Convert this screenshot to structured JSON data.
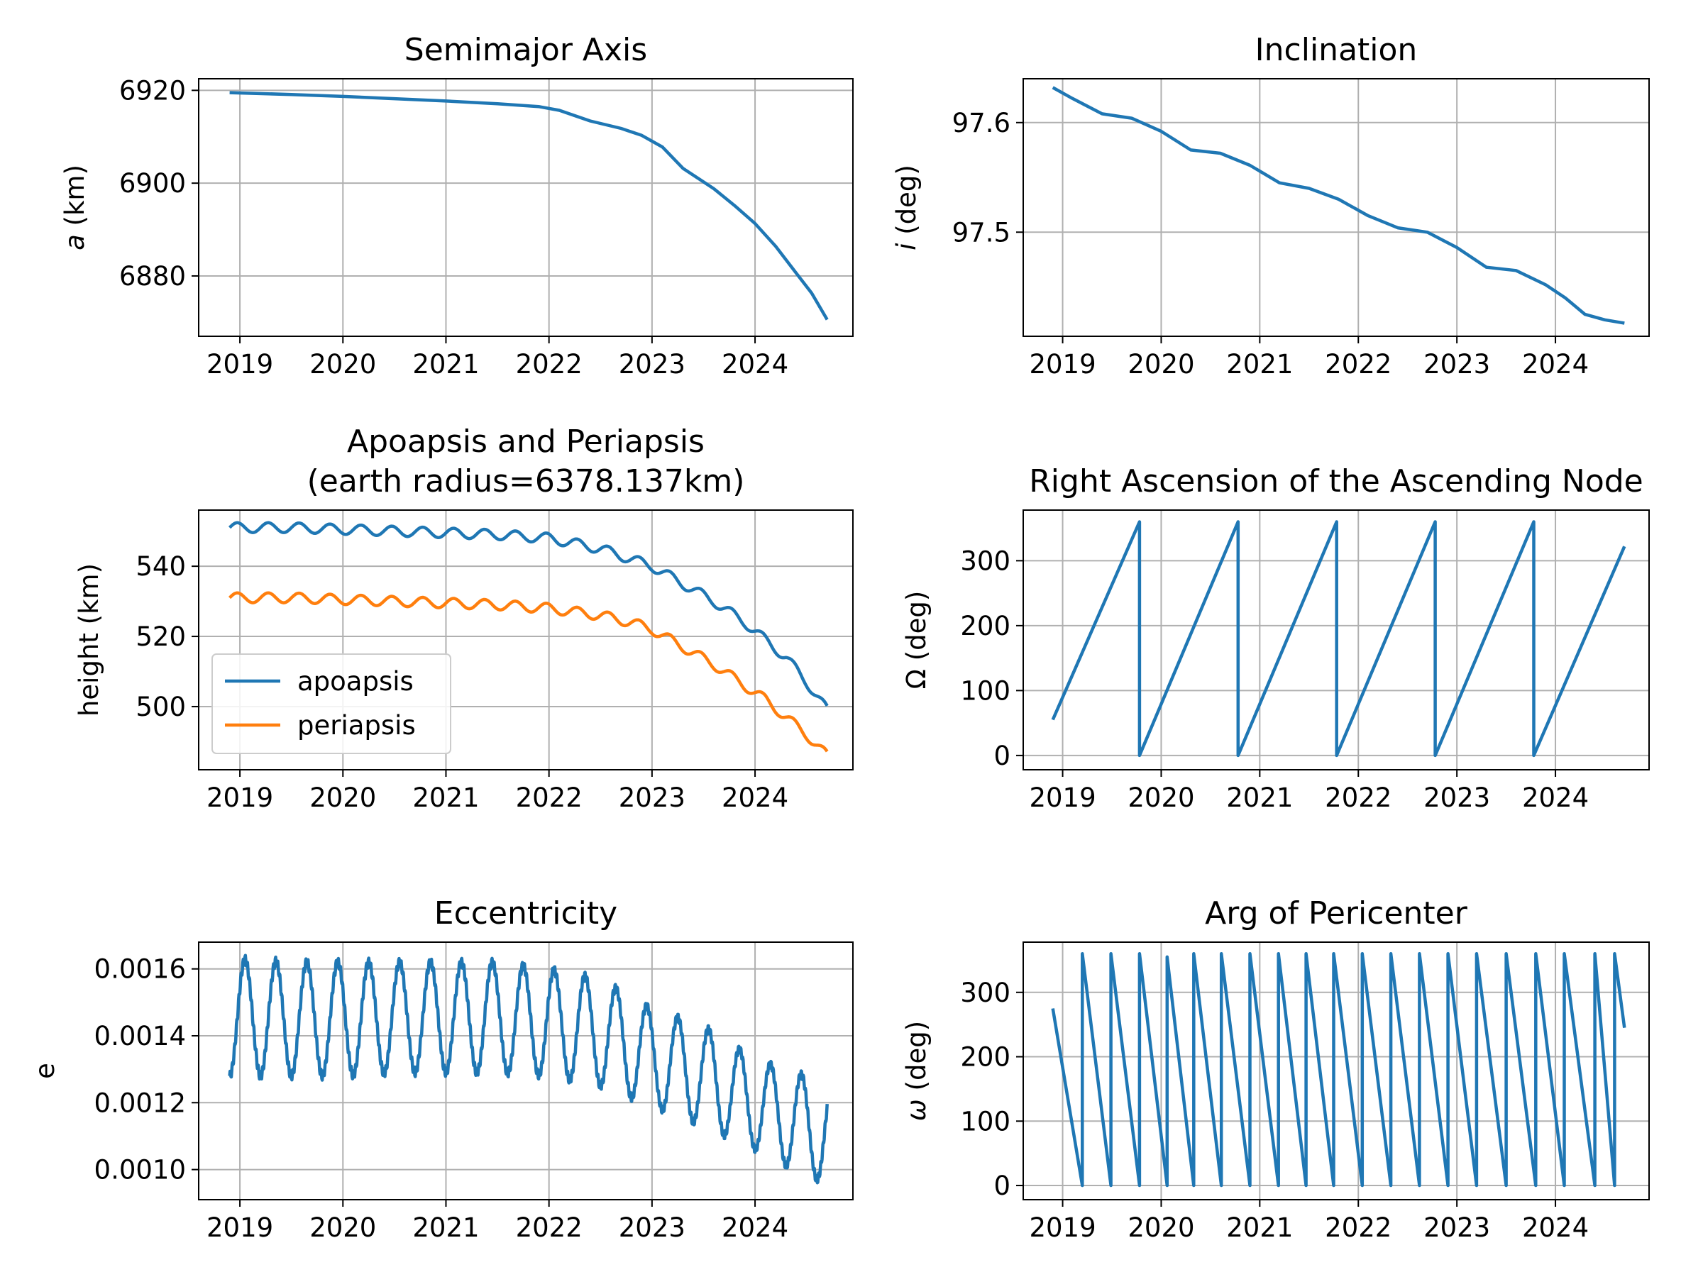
{
  "colors": {
    "blue": "#1f77b4",
    "orange": "#ff7f0e",
    "grid": "#b0b0b0",
    "frame": "#000000"
  },
  "chart_data": [
    {
      "id": "semimajor",
      "type": "line",
      "title": "Semimajor Axis",
      "ylabel": "a (km)",
      "xlabel": "",
      "grid": true,
      "xlim": [
        2018.6,
        2024.95
      ],
      "ylim": [
        6867,
        6922.5
      ],
      "xticks": [
        2019,
        2020,
        2021,
        2022,
        2023,
        2024
      ],
      "xtick_labels": [
        "2019",
        "2020",
        "2021",
        "2022",
        "2023",
        "2024"
      ],
      "yticks": [
        6880,
        6900,
        6920
      ],
      "ytick_labels": [
        "6880",
        "6900",
        "6920"
      ],
      "series": [
        {
          "color": "#1f77b4",
          "x": [
            2018.9,
            2019.5,
            2020.0,
            2020.5,
            2021.0,
            2021.5,
            2021.9,
            2022.1,
            2022.4,
            2022.7,
            2022.9,
            2023.1,
            2023.3,
            2023.6,
            2023.8,
            2024.0,
            2024.2,
            2024.4,
            2024.55,
            2024.7
          ],
          "y": [
            6919.5,
            6919.1,
            6918.7,
            6918.2,
            6917.7,
            6917.1,
            6916.5,
            6915.7,
            6913.4,
            6911.8,
            6910.3,
            6907.8,
            6903.2,
            6898.8,
            6895.2,
            6891.3,
            6886.4,
            6880.6,
            6876.3,
            6870.6
          ]
        }
      ]
    },
    {
      "id": "inclination",
      "type": "line",
      "title": "Inclination",
      "ylabel": "i (deg)",
      "xlabel": "",
      "grid": true,
      "xlim": [
        2018.6,
        2024.95
      ],
      "ylim": [
        97.405,
        97.64
      ],
      "xticks": [
        2019,
        2020,
        2021,
        2022,
        2023,
        2024
      ],
      "xtick_labels": [
        "2019",
        "2020",
        "2021",
        "2022",
        "2023",
        "2024"
      ],
      "yticks": [
        97.5,
        97.6
      ],
      "ytick_labels": [
        "97.5",
        "97.6"
      ],
      "series": [
        {
          "color": "#1f77b4",
          "x": [
            2018.9,
            2019.1,
            2019.4,
            2019.7,
            2020.0,
            2020.3,
            2020.6,
            2020.9,
            2021.2,
            2021.5,
            2021.8,
            2022.1,
            2022.4,
            2022.7,
            2023.0,
            2023.3,
            2023.6,
            2023.9,
            2024.1,
            2024.3,
            2024.5,
            2024.7
          ],
          "y": [
            97.632,
            97.622,
            97.608,
            97.604,
            97.592,
            97.575,
            97.572,
            97.561,
            97.545,
            97.54,
            97.53,
            97.515,
            97.504,
            97.5,
            97.486,
            97.468,
            97.465,
            97.452,
            97.44,
            97.425,
            97.42,
            97.417
          ]
        }
      ]
    },
    {
      "id": "apsides",
      "type": "line",
      "title": "Apoapsis and Periapsis\n(earth radius=6378.137km)",
      "ylabel": "height (km)",
      "xlabel": "",
      "grid": true,
      "xlim": [
        2018.6,
        2024.95
      ],
      "ylim": [
        482,
        556
      ],
      "xticks": [
        2019,
        2020,
        2021,
        2022,
        2023,
        2024
      ],
      "xtick_labels": [
        "2019",
        "2020",
        "2021",
        "2022",
        "2023",
        "2024"
      ],
      "yticks": [
        500,
        520,
        540
      ],
      "ytick_labels": [
        "500",
        "520",
        "540"
      ],
      "legend": {
        "placement": "lower left",
        "entries": [
          "apoapsis",
          "periapsis"
        ]
      },
      "series": [
        {
          "name": "apoapsis",
          "color": "#1f77b4",
          "oscillation_amplitude": 1.4,
          "oscillation_period": 0.3,
          "x": [
            2018.9,
            2019.5,
            2020.0,
            2020.5,
            2021.0,
            2021.5,
            2022.0,
            2022.5,
            2022.8,
            2023.0,
            2023.3,
            2023.6,
            2023.9,
            2024.1,
            2024.3,
            2024.5,
            2024.7
          ],
          "y": [
            551,
            551,
            550.5,
            550,
            549.5,
            549,
            548,
            545,
            542,
            540,
            535,
            530,
            524,
            519,
            514,
            507,
            499
          ]
        },
        {
          "name": "periapsis",
          "color": "#ff7f0e",
          "oscillation_amplitude": 1.4,
          "oscillation_period": 0.3,
          "x": [
            2018.9,
            2019.5,
            2020.0,
            2020.5,
            2021.0,
            2021.5,
            2022.0,
            2022.5,
            2022.8,
            2023.0,
            2023.3,
            2023.6,
            2023.9,
            2024.1,
            2024.3,
            2024.5,
            2024.7
          ],
          "y": [
            531,
            531,
            530.5,
            530,
            529.5,
            529,
            528,
            526,
            524,
            522,
            517,
            512,
            506,
            502,
            497,
            492,
            486
          ]
        }
      ]
    },
    {
      "id": "raan",
      "type": "line",
      "title": "Right Ascension of the Ascending Node",
      "ylabel": "Ω (deg)",
      "xlabel": "",
      "grid": true,
      "xlim": [
        2018.6,
        2024.95
      ],
      "ylim": [
        -22,
        378
      ],
      "xticks": [
        2019,
        2020,
        2021,
        2022,
        2023,
        2024
      ],
      "xtick_labels": [
        "2019",
        "2020",
        "2021",
        "2022",
        "2023",
        "2024"
      ],
      "yticks": [
        0,
        100,
        200,
        300
      ],
      "ytick_labels": [
        "0",
        "100",
        "200",
        "300"
      ],
      "series": [
        {
          "color": "#1f77b4",
          "x": [
            2018.9,
            2019.78,
            2019.78,
            2020.78,
            2020.78,
            2021.78,
            2021.78,
            2022.78,
            2022.78,
            2023.78,
            2023.78,
            2024.7
          ],
          "y": [
            55,
            360,
            0,
            360,
            0,
            360,
            0,
            360,
            0,
            360,
            0,
            322
          ]
        }
      ]
    },
    {
      "id": "eccentricity",
      "type": "line",
      "title": "Eccentricity",
      "ylabel": "e",
      "xlabel": "",
      "grid": true,
      "xlim": [
        2018.6,
        2024.95
      ],
      "ylim": [
        0.00091,
        0.00168
      ],
      "xticks": [
        2019,
        2020,
        2021,
        2022,
        2023,
        2024
      ],
      "xtick_labels": [
        "2019",
        "2020",
        "2021",
        "2022",
        "2023",
        "2024"
      ],
      "yticks": [
        0.001,
        0.0012,
        0.0014,
        0.0016
      ],
      "ytick_labels": [
        "0.0010",
        "0.0012",
        "0.0014",
        "0.0016"
      ],
      "series": [
        {
          "color": "#1f77b4",
          "oscillation_period": 0.3,
          "x": [
            2018.9,
            2019.5,
            2020.0,
            2020.5,
            2021.0,
            2021.5,
            2022.0,
            2022.5,
            2023.0,
            2023.5,
            2024.0,
            2024.5,
            2024.7
          ],
          "peaks": [
            0.00163,
            0.00162,
            0.00162,
            0.00162,
            0.00162,
            0.00162,
            0.0016,
            0.00157,
            0.00148,
            0.00143,
            0.00133,
            0.00128,
            0.00126
          ],
          "troughs": [
            0.00128,
            0.00128,
            0.00128,
            0.00129,
            0.00129,
            0.00129,
            0.00128,
            0.00125,
            0.00119,
            0.00113,
            0.00106,
            0.00098,
            0.00096
          ]
        }
      ]
    },
    {
      "id": "argp",
      "type": "line",
      "title": "Arg of Pericenter",
      "ylabel": "ω (deg)",
      "xlabel": "",
      "grid": true,
      "xlim": [
        2018.6,
        2024.95
      ],
      "ylim": [
        -22,
        378
      ],
      "xticks": [
        2019,
        2020,
        2021,
        2022,
        2023,
        2024
      ],
      "xtick_labels": [
        "2019",
        "2020",
        "2021",
        "2022",
        "2023",
        "2024"
      ],
      "yticks": [
        0,
        100,
        200,
        300
      ],
      "ytick_labels": [
        "0",
        "100",
        "200",
        "300"
      ],
      "series": [
        {
          "color": "#1f77b4",
          "x": [
            2018.9,
            2019.2,
            2019.2,
            2019.49,
            2019.49,
            2019.78,
            2019.78,
            2020.06,
            2020.06,
            2020.33,
            2020.33,
            2020.61,
            2020.61,
            2020.9,
            2020.9,
            2021.19,
            2021.19,
            2021.47,
            2021.47,
            2021.75,
            2021.75,
            2022.04,
            2022.04,
            2022.33,
            2022.33,
            2022.62,
            2022.62,
            2022.91,
            2022.91,
            2023.2,
            2023.2,
            2023.5,
            2023.5,
            2023.8,
            2023.8,
            2024.09,
            2024.09,
            2024.4,
            2024.4,
            2024.6,
            2024.6,
            2024.7
          ],
          "y": [
            275,
            0,
            360,
            0,
            360,
            0,
            360,
            0,
            355,
            0,
            360,
            0,
            360,
            0,
            360,
            0,
            360,
            0,
            360,
            0,
            360,
            0,
            360,
            0,
            360,
            0,
            360,
            0,
            360,
            0,
            360,
            0,
            360,
            0,
            360,
            0,
            360,
            0,
            360,
            0,
            360,
            245
          ]
        }
      ]
    }
  ]
}
